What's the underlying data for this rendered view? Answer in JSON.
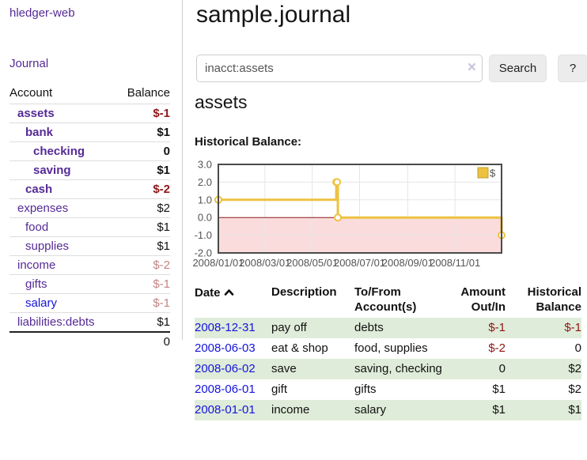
{
  "app": {
    "title": "hledger-web"
  },
  "sidebar": {
    "journal_link": "Journal",
    "accounts_table": {
      "account_header": "Account",
      "balance_header": "Balance",
      "rows": [
        {
          "label": "assets",
          "balance": "$-1",
          "depth": 1,
          "bold": true,
          "balance_tone": "negative"
        },
        {
          "label": "bank",
          "balance": "$1",
          "depth": 2,
          "bold": true,
          "balance_tone": "default"
        },
        {
          "label": "checking",
          "balance": "0",
          "depth": 3,
          "bold": true,
          "balance_tone": "default"
        },
        {
          "label": "saving",
          "balance": "$1",
          "depth": 3,
          "bold": true,
          "balance_tone": "default"
        },
        {
          "label": "cash",
          "balance": "$-2",
          "depth": 2,
          "bold": true,
          "balance_tone": "negative"
        },
        {
          "label": "expenses",
          "balance": "$2",
          "depth": 1,
          "bold": false,
          "balance_tone": "default"
        },
        {
          "label": "food",
          "balance": "$1",
          "depth": 2,
          "bold": false,
          "balance_tone": "default"
        },
        {
          "label": "supplies",
          "balance": "$1",
          "depth": 2,
          "bold": false,
          "balance_tone": "default"
        },
        {
          "label": "income",
          "balance": "$-2",
          "depth": 1,
          "bold": false,
          "balance_tone": "negative-muted"
        },
        {
          "label": "gifts",
          "balance": "$-1",
          "depth": 2,
          "bold": false,
          "balance_tone": "negative-muted"
        },
        {
          "label": "salary",
          "balance": "$-1",
          "depth": 2,
          "bold": false,
          "balance_tone": "negative-muted",
          "label_tone": "blue"
        },
        {
          "label": "liabilities:debts",
          "balance": "$1",
          "depth": 1,
          "bold": false,
          "balance_tone": "default"
        }
      ],
      "total": "0"
    }
  },
  "main": {
    "journal_title": "sample.journal",
    "search": {
      "value": "inacct:assets",
      "clear_label": "×",
      "button": "Search",
      "help_button": "?"
    },
    "account_heading": "assets",
    "chart_heading": "Historical Balance:"
  },
  "chart_data": {
    "type": "line",
    "style": "step",
    "title": "Historical Balance:",
    "series": [
      {
        "name": "$",
        "color": "#edc240",
        "points": [
          {
            "date": "2008-01-01",
            "value": 1
          },
          {
            "date": "2008-06-01",
            "value": 2
          },
          {
            "date": "2008-06-02",
            "value": 2
          },
          {
            "date": "2008-06-03",
            "value": 0
          },
          {
            "date": "2008-12-31",
            "value": -1
          }
        ]
      }
    ],
    "x_range": [
      "2008-01-01",
      "2008-12-31"
    ],
    "x_ticks": [
      {
        "date": "2008-01-01",
        "label": "2008/01/01"
      },
      {
        "date": "2008-03-01",
        "label": "2008/03/01"
      },
      {
        "date": "2008-05-01",
        "label": "2008/05/01"
      },
      {
        "date": "2008-07-01",
        "label": "2008/07/01"
      },
      {
        "date": "2008-09-01",
        "label": "2008/09/01"
      },
      {
        "date": "2008-11-01",
        "label": "2008/11/01"
      }
    ],
    "y_ticks": [
      {
        "value": 3,
        "label": "3.0"
      },
      {
        "value": 2,
        "label": "2.0"
      },
      {
        "value": 1,
        "label": "1.0"
      },
      {
        "value": 0,
        "label": "0.0"
      },
      {
        "value": -1,
        "label": "-1.0"
      },
      {
        "value": -2,
        "label": "-2.0"
      }
    ],
    "ylim": [
      -2,
      3
    ],
    "grid": true,
    "legend": {
      "label": "$",
      "position": "top-right"
    },
    "negative_fill": "#fbdcdc",
    "zero_line_color": "#8b1a1a",
    "grid_color": "#e6e6e6",
    "border_color": "#4a4a4a",
    "tick_label_color": "#545454"
  },
  "register": {
    "headers": {
      "date": "Date",
      "description": "Description",
      "accounts": "To/From Account(s)",
      "amount": "Amount Out/In",
      "balance": "Historical Balance"
    },
    "sort_icon": "chevron-up",
    "rows": [
      {
        "date": "2008-12-31",
        "description": "pay off",
        "accounts": "debts",
        "amount": "$-1",
        "amount_tone": "negative",
        "balance": "$-1",
        "balance_tone": "negative"
      },
      {
        "date": "2008-06-03",
        "description": "eat & shop",
        "accounts": "food, supplies",
        "amount": "$-2",
        "amount_tone": "negative",
        "balance": "0",
        "balance_tone": "default"
      },
      {
        "date": "2008-06-02",
        "description": "save",
        "accounts": "saving, checking",
        "amount": "0",
        "amount_tone": "default",
        "balance": "$2",
        "balance_tone": "default"
      },
      {
        "date": "2008-06-01",
        "description": "gift",
        "accounts": "gifts",
        "amount": "$1",
        "amount_tone": "default",
        "balance": "$2",
        "balance_tone": "default"
      },
      {
        "date": "2008-01-01",
        "description": "income",
        "accounts": "salary",
        "amount": "$1",
        "amount_tone": "default",
        "balance": "$1",
        "balance_tone": "default"
      }
    ]
  },
  "colors": {
    "accent_purple": "#552a96",
    "link_blue": "#1414dd",
    "negative": "#8e1717",
    "negative_muted": "#c48484",
    "row_green": "#dfecd9",
    "chart_line": "#edc240"
  }
}
